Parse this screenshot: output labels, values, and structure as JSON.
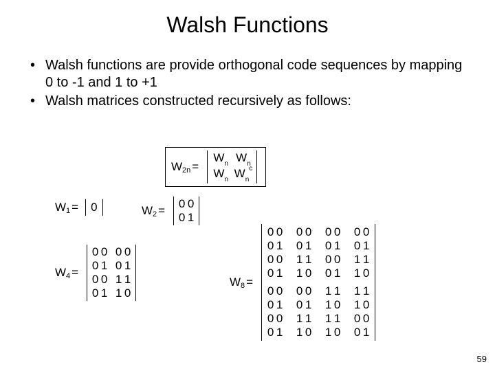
{
  "title": "Walsh Functions",
  "bullets": [
    "Walsh functions are provide orthogonal code sequences by mapping 0 to -1 and 1 to +1",
    "Walsh matrices constructed recursively as follows:"
  ],
  "formula": {
    "lhs_w": "W",
    "lhs_sub": "2n",
    "eq": "=",
    "wn": "W",
    "n": "n",
    "c": "c"
  },
  "w1": {
    "label_w": "W",
    "label_sub": "1",
    "eq": "=",
    "value": "0"
  },
  "w2": {
    "label_w": "W",
    "label_sub": "2",
    "eq": "=",
    "rows": [
      [
        "0",
        "0"
      ],
      [
        "0",
        "1"
      ]
    ]
  },
  "w4": {
    "label_w": "W",
    "label_sub": "4",
    "eq": "=",
    "rows": [
      [
        "0",
        "0",
        "0",
        "0"
      ],
      [
        "0",
        "1",
        "0",
        "1"
      ],
      [
        "0",
        "0",
        "1",
        "1"
      ],
      [
        "0",
        "1",
        "1",
        "0"
      ]
    ]
  },
  "w8": {
    "label_w": "W",
    "label_sub": "8",
    "eq": "=",
    "top": [
      [
        "0",
        "0",
        "0",
        "0",
        "0",
        "0",
        "0",
        "0"
      ],
      [
        "0",
        "1",
        "0",
        "1",
        "0",
        "1",
        "0",
        "1"
      ],
      [
        "0",
        "0",
        "1",
        "1",
        "0",
        "0",
        "1",
        "1"
      ],
      [
        "0",
        "1",
        "1",
        "0",
        "0",
        "1",
        "1",
        "0"
      ]
    ],
    "bottom": [
      [
        "0",
        "0",
        "0",
        "0",
        "1",
        "1",
        "1",
        "1"
      ],
      [
        "0",
        "1",
        "0",
        "1",
        "1",
        "0",
        "1",
        "0"
      ],
      [
        "0",
        "0",
        "1",
        "1",
        "1",
        "1",
        "0",
        "0"
      ],
      [
        "0",
        "1",
        "1",
        "0",
        "1",
        "0",
        "0",
        "1"
      ]
    ]
  },
  "page_number": "59"
}
